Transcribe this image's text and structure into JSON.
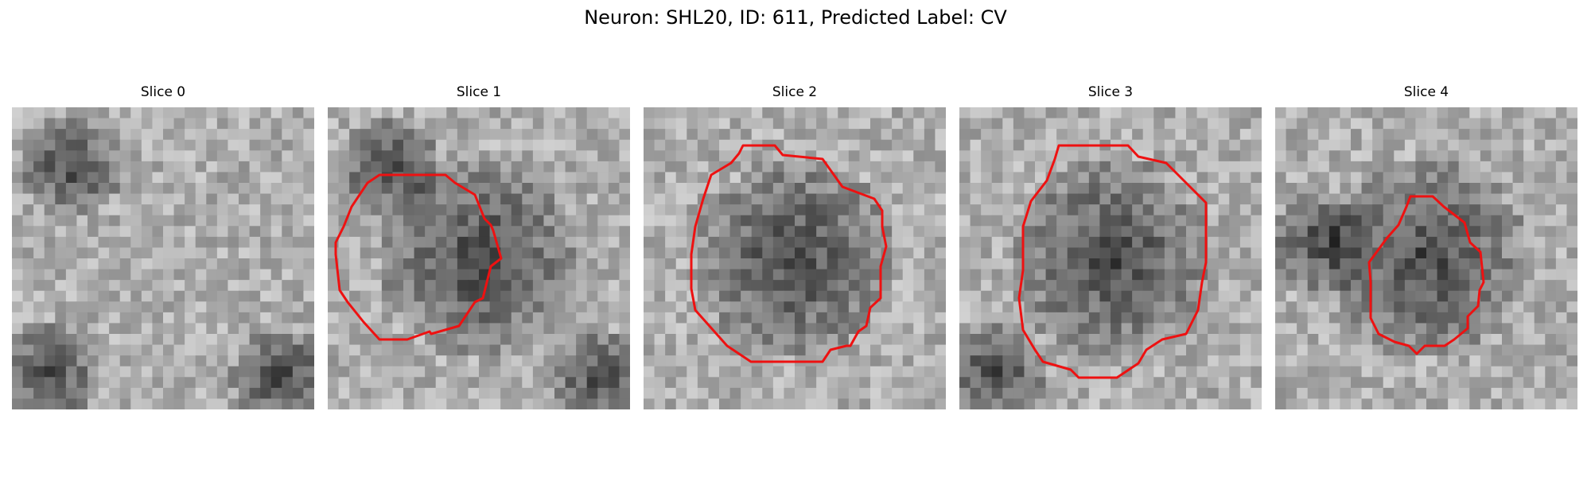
{
  "figure": {
    "title": "Neuron: SHL20, ID: 611, Predicted Label: CV",
    "contour_color": "#ee1111",
    "colormap": "gray"
  },
  "panels": [
    {
      "title": "Slice 0",
      "has_contour": false,
      "dark_regions": [
        "upper-left",
        "lower-left",
        "lower-right"
      ]
    },
    {
      "title": "Slice 1",
      "has_contour": true,
      "dark_regions": [
        "upper-left",
        "center",
        "lower-right"
      ]
    },
    {
      "title": "Slice 2",
      "has_contour": true,
      "dark_regions": [
        "center"
      ]
    },
    {
      "title": "Slice 3",
      "has_contour": true,
      "dark_regions": [
        "center",
        "lower-left"
      ]
    },
    {
      "title": "Slice 4",
      "has_contour": true,
      "dark_regions": [
        "center",
        "left"
      ]
    }
  ]
}
